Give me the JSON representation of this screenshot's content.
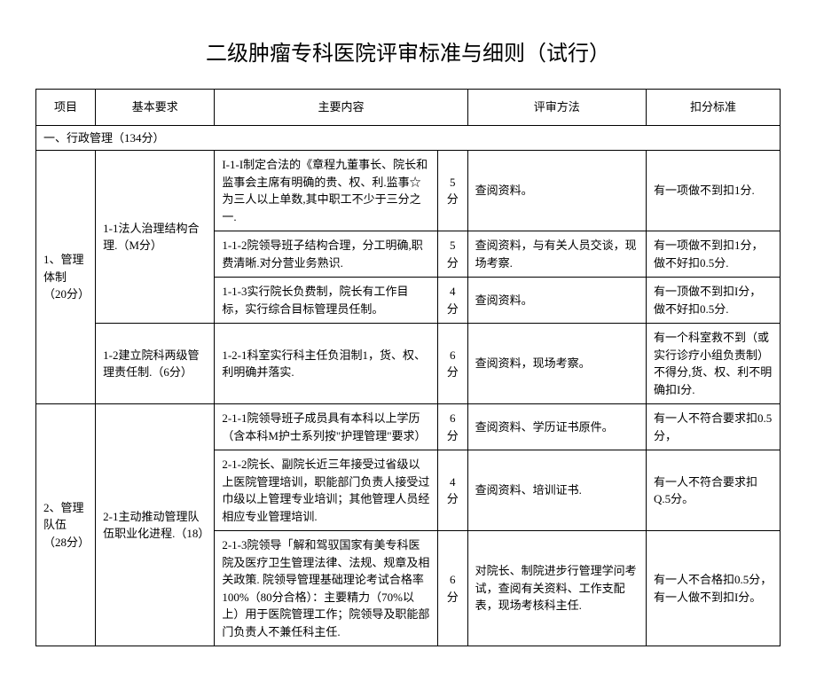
{
  "title": "二级肿瘤专科医院评审标准与细则（试行）",
  "header": {
    "project": "项目",
    "basic": "基本要求",
    "content": "主要内容",
    "method": "评审方法",
    "deduct": "扣分标准"
  },
  "section1": "一、行政管理（134分）",
  "r1": {
    "project": "1、管理体制（20分）",
    "basic": "1-1法人治理结构合理.（M分）",
    "content": "I-1-I制定合法的《章程九董事长、院长和监事会主席有明确的贵、权、利.监事☆为三人以上单数,其中职工不少于三分之一.",
    "score": "5分",
    "method": "查阅资料。",
    "deduct": "有一项做不到扣1分."
  },
  "r2": {
    "content": "1-1-2院领导班子结构合理，分工明确,职费清晰.对分营业务熟识.",
    "score": "5分",
    "method": "查阅资料，与有关人员交谈，现场考察.",
    "deduct": "有一项做不到扣1分，做不好扣0.5分."
  },
  "r3": {
    "content": "1-1-3实行院长负费制，院长有工作目标，实行综合目标管理员任制。",
    "score": "4分",
    "method": "查阅资料。",
    "deduct": "有一顶做不到扣I分，做不好扣0.5分."
  },
  "r4": {
    "basic": "1-2建立院科两级管理责任制.（6分）",
    "content": "1-2-1科室实行科主任负泪制1，货、权、利明确并落实.",
    "score": "6分",
    "method": "查阅资料，现场考察。",
    "deduct": "有一个科室救不到（或实行诊疗小组负责制）不得分,货、权、利不明确扣I分."
  },
  "r5": {
    "project": "2、管理队伍（28分）",
    "basic": "2-1主动推动管理队伍职业化进程.（18）",
    "content": "2-1-1院领导班子成员具有本科以上学历（含本科M护士系列按\"护理管理\"要求）",
    "score": "6分",
    "method": "查阅资料、学历证书原件。",
    "deduct": "有一人不符合要求扣0.5分，"
  },
  "r6": {
    "content": "2-1-2院长、副院长近三年接受过省级以上医院管理培训，职能部门负责人接受过巾级以上管理专业培训；其他管理人员经相应专业管理培训.",
    "score": "4分",
    "method": "查阅资料、培训证书.",
    "deduct": "有一人不符合要求扣Q.5分。"
  },
  "r7": {
    "content": "2-1-3院领导「解和驾驭国家有美专科医院及医疗卫生管理法律、法规、规章及相关政策. 院领导管理基础理论考试合格率100%（80分合格）：主要精力（70%以上）用于医院管理工作；院领导及职能部门负责人不兼任科主任.",
    "score": "6分",
    "method": "对院长、制院进步行管理学问考试，查阅有关资料、工作支配表，现场考核科主任.",
    "deduct": "有一人不合格扣0.5分，有一人做不到扣I分。"
  }
}
